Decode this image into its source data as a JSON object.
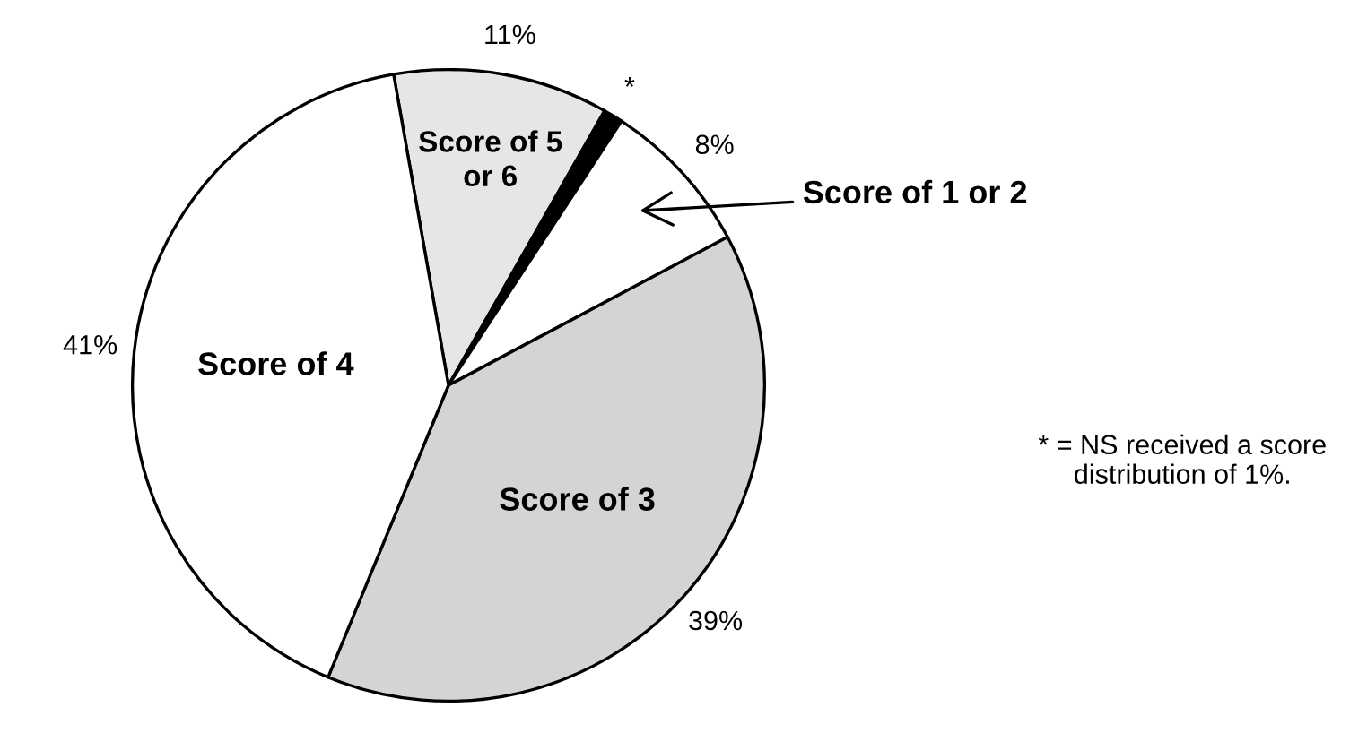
{
  "chart_data": {
    "type": "pie",
    "categories": [
      "Score of 5 or 6",
      "*",
      "Score of 1 or 2",
      "Score of 3",
      "Score of 4"
    ],
    "values": [
      11,
      1,
      8,
      39,
      41
    ],
    "colors": [
      "#e6e6e6",
      "#000000",
      "#ffffff",
      "#d4d4d4",
      "#ffffff"
    ],
    "value_labels": [
      "11%",
      null,
      "8%",
      "39%",
      "41%"
    ],
    "annotations": [
      "* = NS received a score distribution of 1%."
    ]
  }
}
